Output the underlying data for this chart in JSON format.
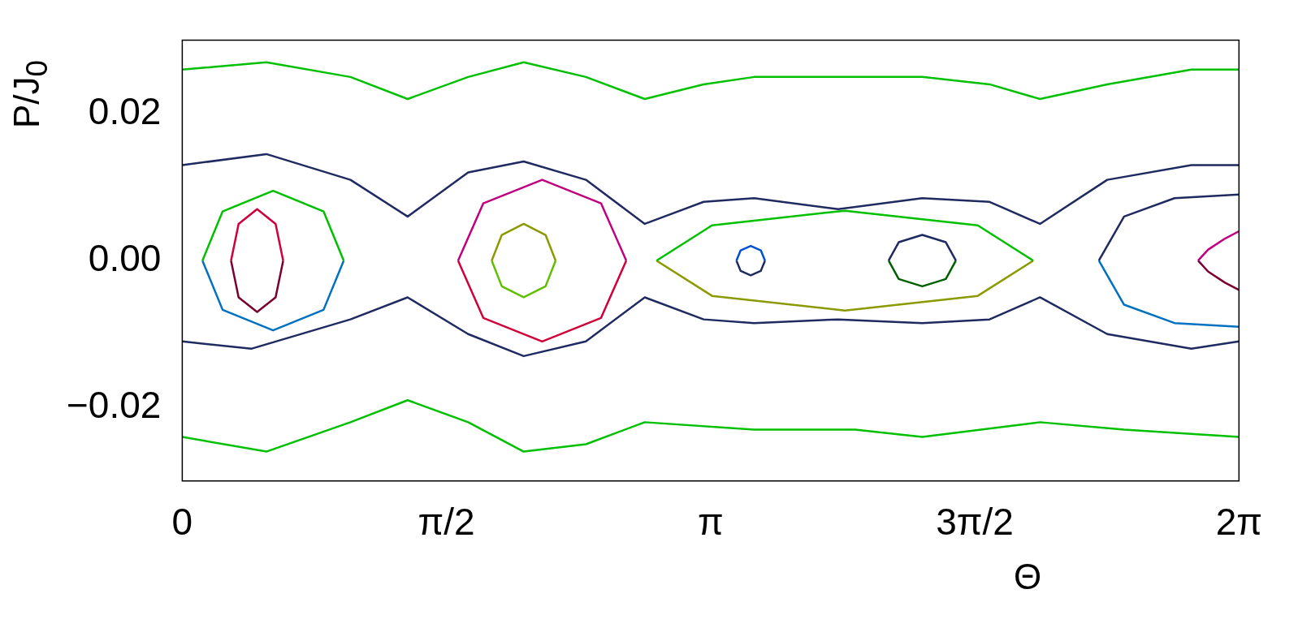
{
  "chart_data": {
    "type": "line",
    "xlabel": "Θ",
    "ylabel": "P/J$_{0}$",
    "xlim": [
      0,
      6.2832
    ],
    "ylim": [
      -0.03,
      0.03
    ],
    "xticks": [
      0,
      {
        "value": 1.5708,
        "label": "π/2"
      },
      {
        "value": 3.1416,
        "label": "π"
      },
      {
        "value": 4.7124,
        "label": "3π/2"
      },
      {
        "value": 6.2832,
        "label": "2π"
      }
    ],
    "yticks": [
      {
        "value": -0.02,
        "label": "−0.02"
      },
      {
        "value": 0,
        "label": "0.00"
      },
      {
        "value": 0.02,
        "label": "0.02"
      }
    ],
    "grid": false,
    "legend": false,
    "marker": "none",
    "line_style": "solid",
    "series": [
      {
        "color": "#00c000",
        "x": [
          0,
          0.5,
          1.0,
          1.34,
          1.7,
          2.03,
          2.4,
          2.75,
          3.1,
          3.4,
          3.8,
          4.4,
          4.8,
          5.1,
          5.5,
          6.0,
          6.2832
        ],
        "values": [
          0.026,
          0.027,
          0.025,
          0.022,
          0.025,
          0.027,
          0.025,
          0.022,
          0.024,
          0.025,
          0.025,
          0.025,
          0.024,
          0.022,
          0.024,
          0.026,
          0.026
        ]
      },
      {
        "color": "#1f2a60",
        "x": [
          0,
          0.5,
          1.0,
          1.34,
          1.7,
          2.03,
          2.4,
          2.75,
          3.1,
          3.4,
          3.9,
          4.4,
          4.8,
          5.1,
          5.5,
          6.0,
          6.2832
        ],
        "values": [
          0.013,
          0.0145,
          0.011,
          0.006,
          0.012,
          0.0135,
          0.011,
          0.005,
          0.008,
          0.0085,
          0.007,
          0.0085,
          0.008,
          0.005,
          0.011,
          0.013,
          0.013
        ]
      },
      {
        "color": "#1f2a60",
        "x": [
          0,
          0.41,
          1.0,
          1.34,
          1.7,
          2.03,
          2.4,
          2.75,
          3.1,
          3.4,
          3.9,
          4.4,
          4.8,
          5.1,
          5.5,
          6.0,
          6.2832
        ],
        "values": [
          -0.011,
          -0.012,
          -0.008,
          -0.005,
          -0.01,
          -0.013,
          -0.011,
          -0.005,
          -0.008,
          -0.0085,
          -0.008,
          -0.0085,
          -0.008,
          -0.005,
          -0.01,
          -0.012,
          -0.011
        ]
      },
      {
        "color": "#00c000",
        "x": [
          0,
          0.5,
          1.0,
          1.34,
          1.7,
          2.03,
          2.4,
          2.75,
          3.4,
          4.0,
          4.4,
          5.1,
          5.6,
          6.2832
        ],
        "values": [
          -0.024,
          -0.026,
          -0.022,
          -0.019,
          -0.022,
          -0.026,
          -0.025,
          -0.022,
          -0.023,
          -0.023,
          -0.024,
          -0.022,
          -0.023,
          -0.024
        ]
      },
      {
        "color": "#d0003a",
        "x": [
          0.29,
          0.335,
          0.445,
          0.555,
          0.6
        ],
        "values": [
          0,
          0.005,
          0.007,
          0.005,
          0
        ]
      },
      {
        "color": "#7a0030",
        "x": [
          0.29,
          0.335,
          0.445,
          0.555,
          0.6
        ],
        "values": [
          0,
          -0.005,
          -0.007,
          -0.005,
          0
        ]
      },
      {
        "color": "#00c000",
        "x": [
          0.12,
          0.24,
          0.54,
          0.84,
          0.96
        ],
        "values": [
          0,
          0.0067,
          0.0095,
          0.0067,
          0
        ]
      },
      {
        "color": "#0070c0",
        "x": [
          0.12,
          0.24,
          0.54,
          0.84,
          0.96
        ],
        "values": [
          0,
          -0.0067,
          -0.0095,
          -0.0067,
          0
        ]
      },
      {
        "color": "#8a9a00",
        "x": [
          1.84,
          1.9,
          2.03,
          2.16,
          2.22
        ],
        "values": [
          0,
          0.0035,
          0.005,
          0.0035,
          0
        ]
      },
      {
        "color": "#60c000",
        "x": [
          1.84,
          1.9,
          2.03,
          2.16,
          2.22
        ],
        "values": [
          0,
          -0.0035,
          -0.005,
          -0.0035,
          0
        ]
      },
      {
        "color": "#c00080",
        "x": [
          1.64,
          1.79,
          2.14,
          2.49,
          2.64
        ],
        "values": [
          0,
          0.0078,
          0.011,
          0.0078,
          0
        ]
      },
      {
        "color": "#d0003a",
        "x": [
          1.64,
          1.79,
          2.14,
          2.49,
          2.64
        ],
        "values": [
          0,
          -0.0078,
          -0.011,
          -0.0078,
          0
        ]
      },
      {
        "color": "#0050d0",
        "x": [
          3.295,
          3.32,
          3.38,
          3.44,
          3.465
        ],
        "values": [
          0,
          0.0014,
          0.002,
          0.0014,
          0
        ]
      },
      {
        "color": "#1f2a60",
        "x": [
          3.295,
          3.32,
          3.38,
          3.44,
          3.465
        ],
        "values": [
          0,
          -0.0014,
          -0.002,
          -0.0014,
          0
        ]
      },
      {
        "color": "#1f2a60",
        "x": [
          4.2,
          4.26,
          4.4,
          4.54,
          4.6
        ],
        "values": [
          0,
          0.0025,
          0.0035,
          0.0025,
          0
        ]
      },
      {
        "color": "#006000",
        "x": [
          4.2,
          4.26,
          4.4,
          4.54,
          4.6
        ],
        "values": [
          0,
          -0.0025,
          -0.0035,
          -0.0025,
          0
        ]
      },
      {
        "color": "#00c000",
        "x": [
          2.82,
          3.15,
          3.94,
          4.73,
          5.06
        ],
        "values": [
          0,
          0.0048,
          0.0068,
          0.0048,
          0
        ]
      },
      {
        "color": "#8a9a00",
        "x": [
          2.82,
          3.15,
          3.94,
          4.73,
          5.06
        ],
        "values": [
          0,
          -0.0048,
          -0.0068,
          -0.0048,
          0
        ]
      },
      {
        "color": "#c00080",
        "x": [
          6.04,
          6.1,
          6.2,
          6.2832
        ],
        "values": [
          0,
          0.0015,
          0.003,
          0.004
        ]
      },
      {
        "color": "#7a0030",
        "x": [
          6.04,
          6.1,
          6.2,
          6.2832
        ],
        "values": [
          0,
          -0.0015,
          -0.003,
          -0.004
        ]
      },
      {
        "color": "#1f2a60",
        "x": [
          5.45,
          5.6,
          5.9,
          6.2832
        ],
        "values": [
          0,
          0.006,
          0.0085,
          0.009
        ]
      },
      {
        "color": "#0070c0",
        "x": [
          5.45,
          5.6,
          5.9,
          6.2832
        ],
        "values": [
          0,
          -0.006,
          -0.0085,
          -0.009
        ]
      }
    ]
  }
}
